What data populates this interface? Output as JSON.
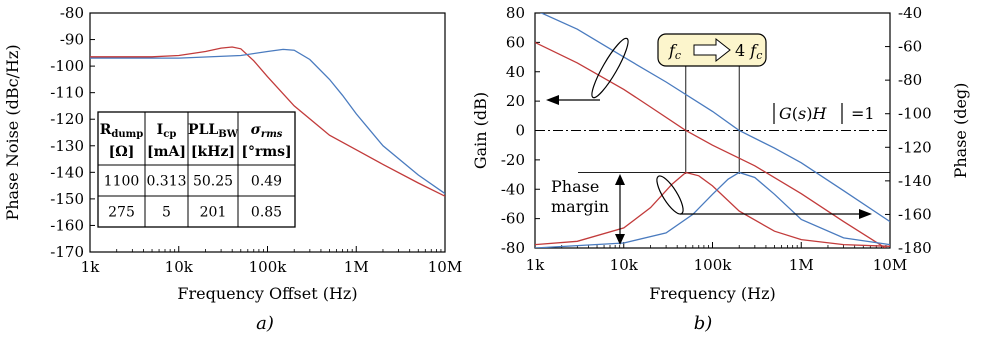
{
  "chart_data": [
    {
      "type": "line",
      "caption": "a)",
      "xlabel": "Frequency Offset (Hz)",
      "ylabel": "Phase Noise (dBc/Hz)",
      "xscale": "log",
      "xlim": [
        1000,
        10000000
      ],
      "ylim": [
        -170,
        -80
      ],
      "xticks": [
        1000,
        10000,
        100000,
        1000000,
        10000000
      ],
      "xtick_labels": [
        "1k",
        "10k",
        "100k",
        "1M",
        "10M"
      ],
      "yticks": [
        -80,
        -90,
        -100,
        -110,
        -120,
        -130,
        -140,
        -150,
        -160,
        -170
      ],
      "ytick_labels": [
        "-80",
        "-90",
        "-100",
        "-110",
        "-120",
        "-130",
        "-140",
        "-150",
        "-160",
        "-170"
      ],
      "grid": false,
      "series": [
        {
          "color": "#c23b3b",
          "x": [
            1000,
            5000,
            10000,
            20000,
            30000,
            40000,
            50000,
            70000,
            100000,
            200000,
            500000,
            1000000,
            2000000,
            5000000,
            10000000
          ],
          "y": [
            -96.5,
            -96.5,
            -96,
            -94.5,
            -93.2,
            -92.8,
            -93.5,
            -98,
            -104,
            -115,
            -126,
            -131.5,
            -137,
            -144,
            -149
          ]
        },
        {
          "color": "#4a7bbf",
          "x": [
            1000,
            10000,
            50000,
            100000,
            150000,
            200000,
            300000,
            500000,
            700000,
            1000000,
            2000000,
            5000000,
            10000000
          ],
          "y": [
            -97,
            -97,
            -96,
            -94.5,
            -93.7,
            -94,
            -97.5,
            -105,
            -111,
            -118,
            -130,
            -141,
            -148
          ]
        }
      ],
      "table": {
        "headers": [
          {
            "main": "R",
            "sub": "dump",
            "unit": "[Ω]"
          },
          {
            "main": "I",
            "sub": "cp",
            "unit": "[mA]"
          },
          {
            "main": "PLL",
            "sub": "BW",
            "unit": "[kHz]"
          },
          {
            "main": "σ",
            "sub": "rms",
            "unit": "[°rms]"
          }
        ],
        "rows": [
          [
            "1100",
            "0.313",
            "50.25",
            "0.49"
          ],
          [
            "275",
            "5",
            "201",
            "0.85"
          ]
        ]
      }
    },
    {
      "type": "line",
      "caption": "b)",
      "xlabel": "Frequency (Hz)",
      "ylabel": "Gain (dB)",
      "ylabel_right": "Phase (deg)",
      "xscale": "log",
      "xlim": [
        1000,
        10000000
      ],
      "ylim": [
        -80,
        80
      ],
      "ylim_right": [
        -180,
        -40
      ],
      "xticks": [
        1000,
        10000,
        100000,
        1000000,
        10000000
      ],
      "xtick_labels": [
        "1k",
        "10k",
        "100k",
        "1M",
        "10M"
      ],
      "yticks": [
        80,
        60,
        40,
        20,
        0,
        -20,
        -40,
        -60,
        -80
      ],
      "ytick_labels": [
        "80",
        "60",
        "40",
        "20",
        "0",
        "-20",
        "-40",
        "-60",
        "-80"
      ],
      "yticks_right": [
        -40,
        -60,
        -80,
        -100,
        -120,
        -140,
        -160,
        -180
      ],
      "ytick_labels_right": [
        "-40",
        "-60",
        "-80",
        "-100",
        "-120",
        "-140",
        "-160",
        "-180"
      ],
      "grid": false,
      "series": [
        {
          "color": "#c23b3b",
          "axis": "left",
          "x": [
            1000,
            3000,
            10000,
            20000,
            50000,
            100000,
            300000,
            1000000,
            3000000,
            10000000
          ],
          "y": [
            60,
            46,
            28,
            16,
            0,
            -10,
            -24,
            -43,
            -62,
            -82
          ]
        },
        {
          "color": "#4a7bbf",
          "axis": "left",
          "x": [
            1000,
            3000,
            10000,
            30000,
            100000,
            200000,
            500000,
            1000000,
            3000000,
            10000000
          ],
          "y": [
            82,
            69,
            50,
            33,
            13,
            0,
            -12,
            -22,
            -41,
            -62
          ]
        },
        {
          "color": "#c23b3b",
          "axis": "right",
          "x": [
            1000,
            3000,
            10000,
            20000,
            35000,
            50000,
            70000,
            100000,
            200000,
            500000,
            1000000,
            3000000,
            10000000
          ],
          "y": [
            -178,
            -176,
            -168,
            -156,
            -142,
            -135,
            -137,
            -143,
            -158,
            -170,
            -175,
            -178,
            -179
          ]
        },
        {
          "color": "#4a7bbf",
          "axis": "right",
          "x": [
            1000,
            10000,
            30000,
            60000,
            100000,
            150000,
            200000,
            300000,
            500000,
            1000000,
            3000000,
            10000000
          ],
          "y": [
            -180,
            -177,
            -171,
            -160,
            -148,
            -139,
            -135,
            -138,
            -148,
            -163,
            -174,
            -178
          ]
        }
      ],
      "annotations": {
        "fc_box": "4",
        "gain_unity": "=1",
        "phase_margin": [
          "Phase",
          "margin"
        ]
      }
    }
  ]
}
